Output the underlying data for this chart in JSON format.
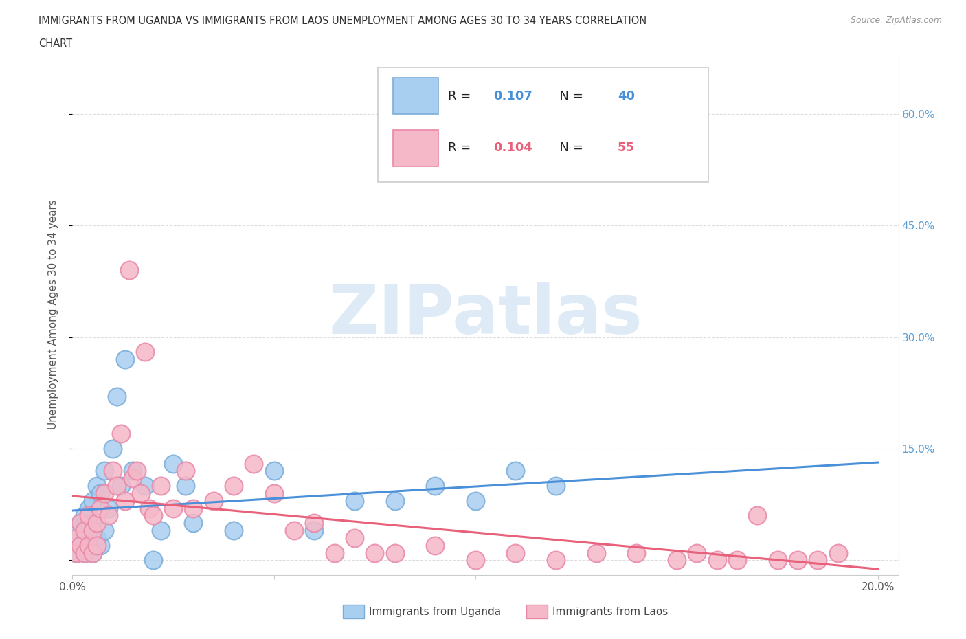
{
  "title_line1": "IMMIGRANTS FROM UGANDA VS IMMIGRANTS FROM LAOS UNEMPLOYMENT AMONG AGES 30 TO 34 YEARS CORRELATION",
  "title_line2": "CHART",
  "source": "Source: ZipAtlas.com",
  "ylabel": "Unemployment Among Ages 30 to 34 years",
  "xlim": [
    0.0,
    0.205
  ],
  "ylim": [
    -0.02,
    0.68
  ],
  "uganda_color": "#a8cef0",
  "uganda_edge": "#7aadd8",
  "laos_color": "#f5b8c8",
  "laos_edge": "#e888a8",
  "line_uganda_color": "#4a90d9",
  "line_laos_color": "#e8607a",
  "uganda_R": "0.107",
  "uganda_N": "40",
  "laos_R": "0.104",
  "laos_N": "55",
  "legend_label_uganda": "Immigrants from Uganda",
  "legend_label_laos": "Immigrants from Laos",
  "watermark": "ZIPatlas",
  "watermark_color": "#c8dff0",
  "uganda_x": [
    0.001,
    0.001,
    0.002,
    0.002,
    0.003,
    0.003,
    0.003,
    0.004,
    0.004,
    0.004,
    0.005,
    0.005,
    0.005,
    0.006,
    0.006,
    0.007,
    0.007,
    0.008,
    0.008,
    0.009,
    0.01,
    0.011,
    0.012,
    0.013,
    0.015,
    0.018,
    0.02,
    0.022,
    0.025,
    0.028,
    0.03,
    0.04,
    0.05,
    0.06,
    0.07,
    0.08,
    0.09,
    0.1,
    0.11,
    0.12
  ],
  "uganda_y": [
    0.04,
    0.01,
    0.05,
    0.02,
    0.06,
    0.03,
    0.01,
    0.07,
    0.02,
    0.04,
    0.08,
    0.01,
    0.05,
    0.1,
    0.03,
    0.09,
    0.02,
    0.12,
    0.04,
    0.07,
    0.15,
    0.22,
    0.1,
    0.27,
    0.12,
    0.1,
    0.0,
    0.04,
    0.13,
    0.1,
    0.05,
    0.04,
    0.12,
    0.04,
    0.08,
    0.08,
    0.1,
    0.08,
    0.12,
    0.1
  ],
  "laos_x": [
    0.001,
    0.001,
    0.002,
    0.002,
    0.003,
    0.003,
    0.004,
    0.004,
    0.005,
    0.005,
    0.006,
    0.006,
    0.007,
    0.008,
    0.009,
    0.01,
    0.011,
    0.012,
    0.013,
    0.014,
    0.015,
    0.016,
    0.017,
    0.018,
    0.019,
    0.02,
    0.022,
    0.025,
    0.028,
    0.03,
    0.035,
    0.04,
    0.045,
    0.05,
    0.055,
    0.06,
    0.065,
    0.07,
    0.075,
    0.08,
    0.09,
    0.1,
    0.11,
    0.12,
    0.13,
    0.14,
    0.15,
    0.155,
    0.16,
    0.165,
    0.17,
    0.175,
    0.18,
    0.185,
    0.19
  ],
  "laos_y": [
    0.03,
    0.01,
    0.05,
    0.02,
    0.04,
    0.01,
    0.06,
    0.02,
    0.04,
    0.01,
    0.05,
    0.02,
    0.07,
    0.09,
    0.06,
    0.12,
    0.1,
    0.17,
    0.08,
    0.39,
    0.11,
    0.12,
    0.09,
    0.28,
    0.07,
    0.06,
    0.1,
    0.07,
    0.12,
    0.07,
    0.08,
    0.1,
    0.13,
    0.09,
    0.04,
    0.05,
    0.01,
    0.03,
    0.01,
    0.01,
    0.02,
    0.0,
    0.01,
    0.0,
    0.01,
    0.01,
    0.0,
    0.01,
    0.0,
    0.0,
    0.06,
    0.0,
    0.0,
    0.0,
    0.01
  ]
}
